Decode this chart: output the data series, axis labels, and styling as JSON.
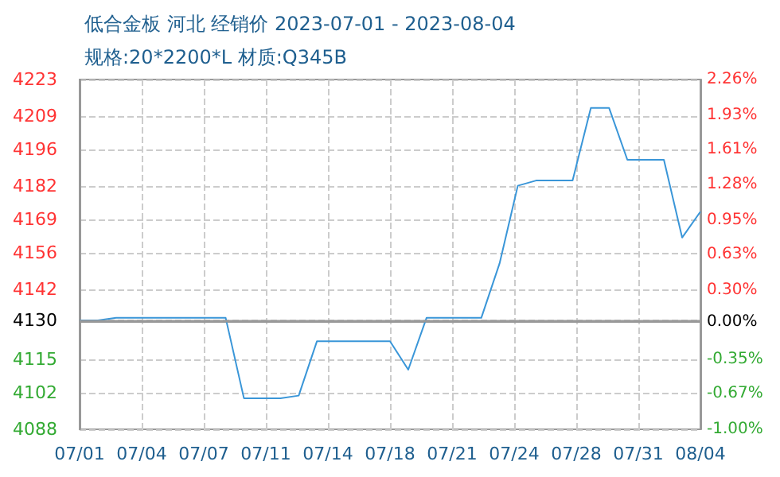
{
  "chart_data": {
    "type": "line",
    "title": "低合金板 河北 经销价 2023-07-01 - 2023-08-04",
    "subtitle": "规格:20*2200*L 材质:Q345B",
    "x": [
      "2023-07-01",
      "2023-07-02",
      "2023-07-03",
      "2023-07-04",
      "2023-07-05",
      "2023-07-06",
      "2023-07-07",
      "2023-07-08",
      "2023-07-09",
      "2023-07-10",
      "2023-07-11",
      "2023-07-12",
      "2023-07-13",
      "2023-07-14",
      "2023-07-15",
      "2023-07-16",
      "2023-07-17",
      "2023-07-18",
      "2023-07-19",
      "2023-07-20",
      "2023-07-21",
      "2023-07-22",
      "2023-07-23",
      "2023-07-24",
      "2023-07-25",
      "2023-07-26",
      "2023-07-27",
      "2023-07-28",
      "2023-07-29",
      "2023-07-30",
      "2023-07-31",
      "2023-08-01",
      "2023-08-02",
      "2023-08-03",
      "2023-08-04"
    ],
    "series": [
      {
        "color": "#3a96d8",
        "values": [
          4130,
          4130,
          4131,
          4131,
          4131,
          4131,
          4131,
          4131,
          4131,
          4100,
          4100,
          4100,
          4101,
          4122,
          4122,
          4122,
          4122,
          4122,
          4111,
          4131,
          4131,
          4131,
          4131,
          4152,
          4182,
          4184,
          4184,
          4184,
          4212,
          4212,
          4192,
          4192,
          4192,
          4162,
          4172
        ]
      }
    ],
    "xlim": [
      "2023-07-01",
      "2023-08-04"
    ],
    "xticks": [
      {
        "value": "2023-07-01",
        "label": "07/01"
      },
      {
        "value": "2023-07-04T09:36",
        "label": "07/04"
      },
      {
        "value": "2023-07-07T19:12",
        "label": "07/07"
      },
      {
        "value": "2023-07-11T04:48",
        "label": "07/11"
      },
      {
        "value": "2023-07-14T14:24",
        "label": "07/14"
      },
      {
        "value": "2023-07-18",
        "label": "07/18"
      },
      {
        "value": "2023-07-21T09:36",
        "label": "07/21"
      },
      {
        "value": "2023-07-24T19:12",
        "label": "07/24"
      },
      {
        "value": "2023-07-28T04:48",
        "label": "07/28"
      },
      {
        "value": "2023-07-31T14:24",
        "label": "07/31"
      },
      {
        "value": "2023-08-04",
        "label": "08/04"
      }
    ],
    "ylim": [
      4088,
      4223
    ],
    "yticks": [
      4088,
      4102,
      4115,
      4130,
      4142,
      4156,
      4169,
      4182,
      4196,
      4209,
      4223
    ],
    "y2lim": [
      -1.0,
      2.26
    ],
    "y2ticks": [
      {
        "value": -1.0,
        "label": "-1.00%"
      },
      {
        "value": -0.67,
        "label": "-0.67%"
      },
      {
        "value": -0.35,
        "label": "-0.35%"
      },
      {
        "value": 0,
        "label": "0.00%"
      },
      {
        "value": 0.3,
        "label": "0.30%"
      },
      {
        "value": 0.63,
        "label": "0.63%"
      },
      {
        "value": 0.95,
        "label": "0.95%"
      },
      {
        "value": 1.28,
        "label": "1.28%"
      },
      {
        "value": 1.61,
        "label": "1.61%"
      },
      {
        "value": 1.93,
        "label": "1.93%"
      },
      {
        "value": 2.26,
        "label": "2.26%"
      }
    ],
    "ref_lines": [
      {
        "axis": "y",
        "value": 4130,
        "color": "#999999",
        "line_style": "solid"
      }
    ],
    "grid": true,
    "marker": "none",
    "line_style": "solid"
  }
}
